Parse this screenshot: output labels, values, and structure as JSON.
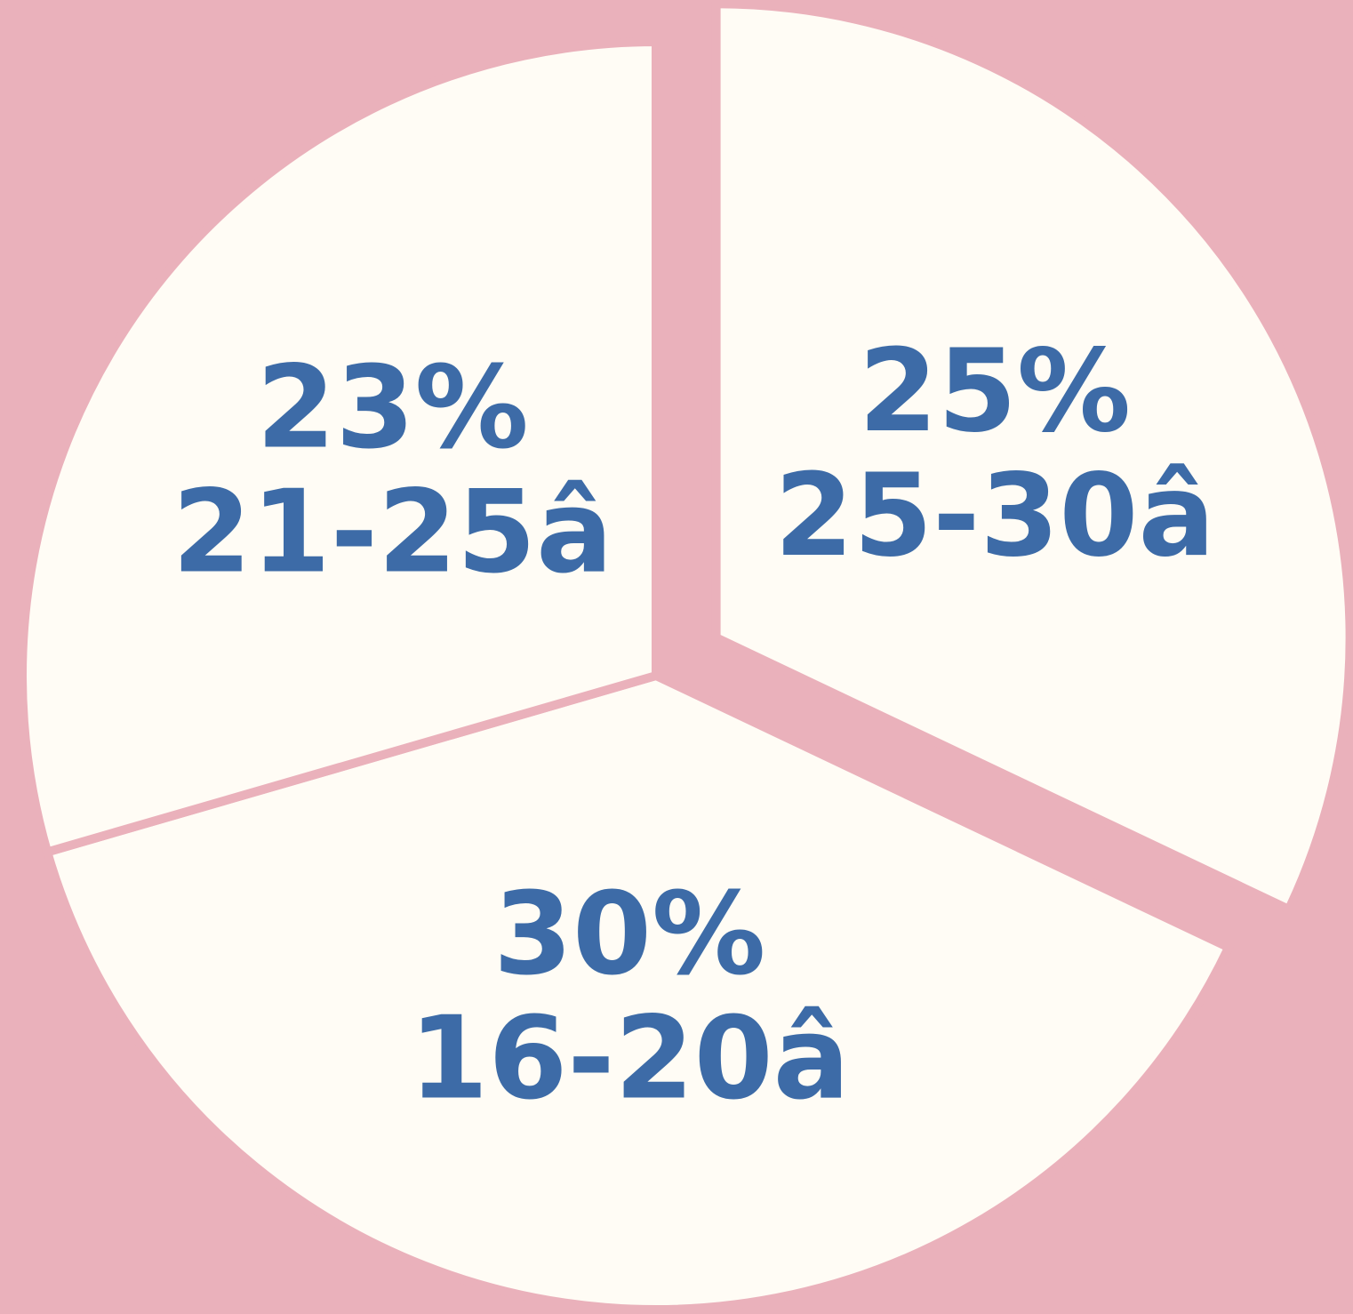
{
  "chart_data": {
    "type": "pie",
    "categories": [
      "25-30â",
      "16-20â",
      "21-25â"
    ],
    "values": [
      25,
      30,
      23
    ],
    "value_labels": [
      "25%",
      "30%",
      "23%"
    ],
    "color": "#fffcf5",
    "exploded": [
      true,
      false,
      false
    ]
  }
}
